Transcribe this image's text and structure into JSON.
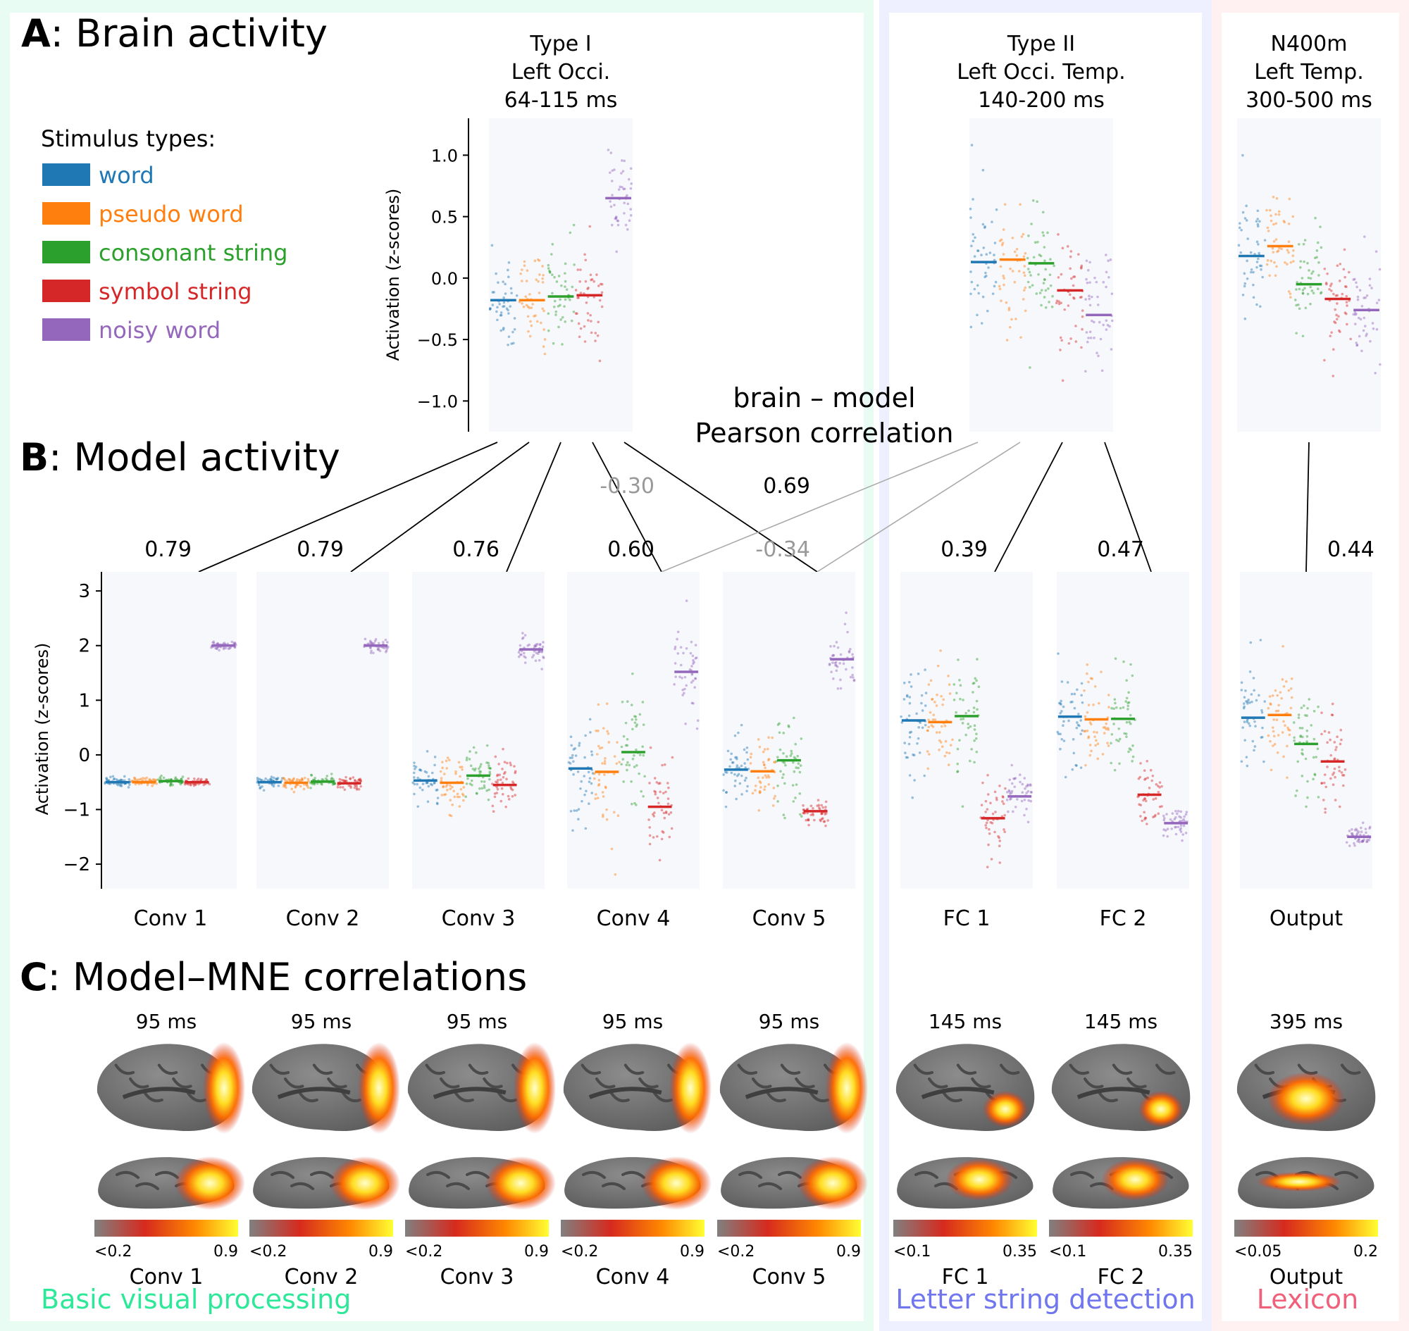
{
  "sections": {
    "a_letter": "A",
    "a_title": ": Brain activity",
    "b_letter": "B",
    "b_title": ": Model activity",
    "c_letter": "C",
    "c_title": ": Model–MNE correlations"
  },
  "legend": {
    "title": "Stimulus types:",
    "items": [
      {
        "label": "word",
        "color": "#1f77b4"
      },
      {
        "label": "pseudo word",
        "color": "#ff7f0e"
      },
      {
        "label": "consonant string",
        "color": "#2ca02c"
      },
      {
        "label": "symbol string",
        "color": "#d62728"
      },
      {
        "label": "noisy word",
        "color": "#9467bd"
      }
    ]
  },
  "correlation_title": {
    "line1": "brain – model",
    "line2": "Pearson correlation"
  },
  "group_labels": [
    {
      "label": "Basic visual processing",
      "color": "#2ee89a",
      "bg": "#e9fcf3"
    },
    {
      "label": "Letter string detection",
      "color": "#6f76ee",
      "bg": "#eeefff"
    },
    {
      "label": "Lexicon",
      "color": "#f0607a",
      "bg": "#fff0f2"
    }
  ],
  "chart_data": [
    {
      "type": "scatter",
      "name": "brain_activity",
      "ylabel": "Activation (z-scores)",
      "ylim": [
        -1.25,
        1.3
      ],
      "yticks": [
        -1.0,
        -0.5,
        0.0,
        0.5,
        1.0
      ],
      "ytick_labels": [
        "−1.0",
        "−0.5",
        "0.0",
        "0.5",
        "1.0"
      ],
      "categories": [
        "word",
        "pseudo word",
        "consonant string",
        "symbol string",
        "noisy word"
      ],
      "panels": [
        {
          "title": [
            "Type I",
            "Left Occi.",
            "64-115 ms"
          ],
          "means": [
            -0.18,
            -0.18,
            -0.15,
            -0.14,
            0.65
          ],
          "sds": [
            0.22,
            0.22,
            0.22,
            0.22,
            0.2
          ]
        },
        {
          "title": [
            "Type II",
            "Left Occi. Temp.",
            "140-200 ms"
          ],
          "means": [
            0.13,
            0.15,
            0.12,
            -0.1,
            -0.3
          ],
          "sds": [
            0.25,
            0.27,
            0.25,
            0.22,
            0.25
          ]
        },
        {
          "title": [
            "N400m",
            "Left Temp.",
            "300-500 ms"
          ],
          "means": [
            0.18,
            0.26,
            -0.05,
            -0.17,
            -0.26
          ],
          "sds": [
            0.25,
            0.25,
            0.22,
            0.22,
            0.25
          ]
        }
      ]
    },
    {
      "type": "scatter",
      "name": "model_activity",
      "ylabel": "Activation (z-scores)",
      "ylim": [
        -2.45,
        3.35
      ],
      "yticks": [
        -2,
        -1,
        0,
        1,
        2,
        3
      ],
      "ytick_labels": [
        "−2",
        "−1",
        "0",
        "1",
        "2",
        "3"
      ],
      "categories": [
        "word",
        "pseudo word",
        "consonant string",
        "symbol string",
        "noisy word"
      ],
      "layers": [
        {
          "label": "Conv 1",
          "means": [
            -0.5,
            -0.5,
            -0.48,
            -0.5,
            2.0
          ],
          "sds": [
            0.04,
            0.04,
            0.04,
            0.04,
            0.04
          ]
        },
        {
          "label": "Conv 2",
          "means": [
            -0.5,
            -0.51,
            -0.49,
            -0.52,
            2.0
          ],
          "sds": [
            0.06,
            0.06,
            0.06,
            0.06,
            0.06
          ]
        },
        {
          "label": "Conv 3",
          "means": [
            -0.47,
            -0.51,
            -0.38,
            -0.55,
            1.93
          ],
          "sds": [
            0.25,
            0.25,
            0.25,
            0.25,
            0.12
          ]
        },
        {
          "label": "Conv 4",
          "means": [
            -0.25,
            -0.31,
            0.05,
            -0.95,
            1.52
          ],
          "sds": [
            0.55,
            0.5,
            0.55,
            0.45,
            0.4
          ]
        },
        {
          "label": "Conv 5",
          "means": [
            -0.27,
            -0.3,
            -0.1,
            -1.03,
            1.75
          ],
          "sds": [
            0.3,
            0.35,
            0.4,
            0.12,
            0.25
          ]
        },
        {
          "label": "FC 1",
          "means": [
            0.63,
            0.6,
            0.71,
            -1.16,
            -0.76
          ],
          "sds": [
            0.45,
            0.5,
            0.55,
            0.35,
            0.2
          ]
        },
        {
          "label": "FC 2",
          "means": [
            0.7,
            0.65,
            0.66,
            -0.73,
            -1.25
          ],
          "sds": [
            0.5,
            0.5,
            0.5,
            0.3,
            0.12
          ]
        },
        {
          "label": "Output",
          "means": [
            0.68,
            0.73,
            0.2,
            -0.12,
            -1.5
          ],
          "sds": [
            0.5,
            0.5,
            0.45,
            0.5,
            0.1
          ]
        }
      ]
    },
    {
      "type": "correlation_links",
      "name": "brain_model_pearson",
      "links": [
        {
          "brain": "Type I",
          "model": "Conv 1",
          "r": "0.79"
        },
        {
          "brain": "Type I",
          "model": "Conv 2",
          "r": "0.79"
        },
        {
          "brain": "Type I",
          "model": "Conv 3",
          "r": "0.76"
        },
        {
          "brain": "Type I",
          "model": "Conv 4",
          "r": "0.60"
        },
        {
          "brain": "Type I",
          "model": "Conv 5",
          "r": "0.69"
        },
        {
          "brain": "Type II",
          "model": "Conv 4",
          "r": "-0.30"
        },
        {
          "brain": "Type II",
          "model": "Conv 5",
          "r": "-0.34"
        },
        {
          "brain": "Type II",
          "model": "FC 1",
          "r": "0.39"
        },
        {
          "brain": "Type II",
          "model": "FC 2",
          "r": "0.47"
        },
        {
          "brain": "N400m",
          "model": "Output",
          "r": "0.44"
        }
      ]
    },
    {
      "type": "heatmap",
      "name": "model_mne_correlations",
      "colormap": [
        "#808080",
        "#d62a1e",
        "#ff8800",
        "#ffff33"
      ],
      "panels": [
        {
          "label": "Conv 1",
          "time": "95 ms",
          "cmin": "<0.2",
          "cmax": "0.9"
        },
        {
          "label": "Conv 2",
          "time": "95 ms",
          "cmin": "<0.2",
          "cmax": "0.9"
        },
        {
          "label": "Conv 3",
          "time": "95 ms",
          "cmin": "<0.2",
          "cmax": "0.9"
        },
        {
          "label": "Conv 4",
          "time": "95 ms",
          "cmin": "<0.2",
          "cmax": "0.9"
        },
        {
          "label": "Conv 5",
          "time": "95 ms",
          "cmin": "<0.2",
          "cmax": "0.9"
        },
        {
          "label": "FC 1",
          "time": "145 ms",
          "cmin": "<0.1",
          "cmax": "0.35"
        },
        {
          "label": "FC 2",
          "time": "145 ms",
          "cmin": "<0.1",
          "cmax": "0.35"
        },
        {
          "label": "Output",
          "time": "395 ms",
          "cmin": "<0.05",
          "cmax": "0.2"
        }
      ]
    }
  ]
}
